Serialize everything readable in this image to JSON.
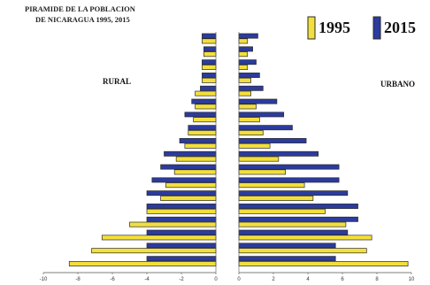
{
  "chart_data": {
    "type": "bar",
    "title": [
      "PIRAMIDE DE LA POBLACION",
      "DE NICARAGUA 1995, 2015"
    ],
    "side_labels": {
      "left": "RURAL",
      "right": "URBANO"
    },
    "legend_placement": "top-right",
    "colors": {
      "1995": "#f3df3c",
      "2015": "#2b3b9e",
      "outline": "#2a2a2a"
    },
    "series": [
      {
        "name": "1995"
      },
      {
        "name": "2015"
      }
    ],
    "age_groups_top_to_bottom": 18,
    "left_xlim": [
      -10,
      0
    ],
    "right_xlim": [
      0,
      10
    ],
    "left_ticks": [
      "-10",
      "-8",
      "-6",
      "-4",
      "-2",
      "0"
    ],
    "right_ticks": [
      "0",
      "2",
      "4",
      "6",
      "8",
      "10"
    ],
    "rural": {
      "1995": [
        0.8,
        0.7,
        0.8,
        0.8,
        1.2,
        1.2,
        1.3,
        1.6,
        1.8,
        2.3,
        2.4,
        2.9,
        3.2,
        4.0,
        5.0,
        6.6,
        7.2,
        8.5
      ],
      "2015": [
        0.8,
        0.7,
        0.8,
        0.8,
        0.9,
        1.4,
        1.8,
        1.6,
        2.1,
        3.0,
        3.2,
        3.7,
        4.0,
        4.0,
        4.0,
        4.0,
        4.0,
        4.0
      ]
    },
    "urbano": {
      "1995": [
        0.5,
        0.5,
        0.5,
        0.7,
        0.7,
        1.0,
        1.2,
        1.4,
        1.8,
        2.3,
        2.7,
        3.8,
        4.3,
        5.0,
        6.2,
        7.7,
        7.4,
        9.8
      ],
      "2015": [
        1.1,
        0.8,
        1.0,
        1.2,
        1.4,
        2.2,
        2.6,
        3.1,
        3.9,
        4.6,
        5.8,
        5.8,
        6.3,
        6.9,
        6.9,
        6.3,
        5.6,
        5.6
      ]
    }
  }
}
